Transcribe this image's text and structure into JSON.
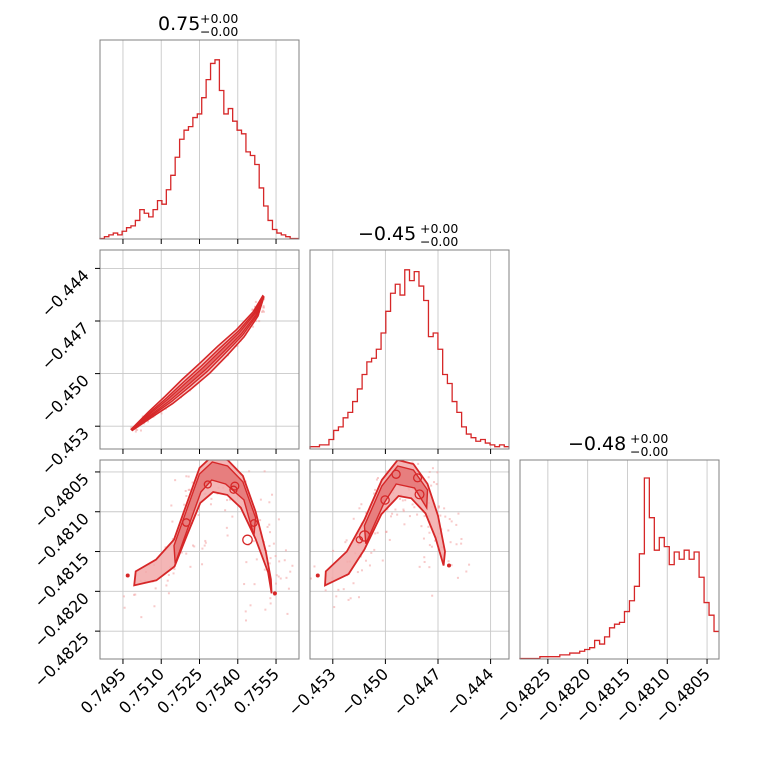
{
  "chart_data": {
    "type": "corner",
    "color": "#d62728",
    "grid": true,
    "parameters": [
      {
        "title_value": "0.75",
        "title_plus": "+0.00",
        "title_minus": "−0.00",
        "range": [
          0.7486,
          0.7564
        ],
        "ticks": [
          0.7495,
          0.751,
          0.7525,
          0.754,
          0.7555
        ],
        "tick_labels": [
          "0.7495",
          "0.7510",
          "0.7525",
          "0.7540",
          "0.7555"
        ],
        "histogram": [
          0.0,
          0.01,
          0.02,
          0.03,
          0.02,
          0.04,
          0.06,
          0.07,
          0.1,
          0.16,
          0.14,
          0.12,
          0.16,
          0.21,
          0.19,
          0.27,
          0.35,
          0.45,
          0.55,
          0.6,
          0.62,
          0.67,
          0.69,
          0.78,
          0.88,
          0.97,
          0.99,
          0.82,
          0.69,
          0.72,
          0.65,
          0.6,
          0.58,
          0.48,
          0.46,
          0.41,
          0.28,
          0.18,
          0.1,
          0.05,
          0.03,
          0.02,
          0.01,
          0.0,
          0.0
        ]
      },
      {
        "title_value": "−0.45",
        "title_plus": "+0.00",
        "title_minus": "−0.00",
        "range": [
          -0.4543,
          -0.44295
        ],
        "ticks": [
          -0.453,
          -0.45,
          -0.447,
          -0.444
        ],
        "tick_labels": [
          "−0.453",
          "−0.450",
          "−0.447",
          "−0.444"
        ],
        "histogram": [
          0.01,
          0.01,
          0.02,
          0.02,
          0.05,
          0.1,
          0.12,
          0.17,
          0.2,
          0.26,
          0.33,
          0.41,
          0.48,
          0.5,
          0.55,
          0.64,
          0.76,
          0.86,
          0.91,
          0.85,
          0.99,
          0.93,
          0.98,
          0.9,
          0.82,
          0.62,
          0.64,
          0.55,
          0.41,
          0.36,
          0.26,
          0.2,
          0.12,
          0.08,
          0.06,
          0.04,
          0.05,
          0.03,
          0.02,
          0.01,
          0.02,
          0.01
        ]
      },
      {
        "title_value": "−0.48",
        "title_plus": "+0.00",
        "title_minus": "−0.00",
        "range": [
          -0.48285,
          -0.48035
        ],
        "ticks": [
          -0.4825,
          -0.482,
          -0.4815,
          -0.481,
          -0.4805
        ],
        "tick_labels": [
          "−0.4825",
          "−0.4820",
          "−0.4815",
          "−0.4810",
          "−0.4805"
        ],
        "histogram": [
          0.0,
          0.0,
          0.0,
          0.0,
          0.01,
          0.01,
          0.01,
          0.01,
          0.02,
          0.02,
          0.03,
          0.03,
          0.04,
          0.05,
          0.06,
          0.1,
          0.08,
          0.12,
          0.17,
          0.19,
          0.2,
          0.26,
          0.32,
          0.4,
          0.58,
          1.0,
          0.78,
          0.6,
          0.67,
          0.62,
          0.52,
          0.59,
          0.55,
          0.6,
          0.55,
          0.59,
          0.45,
          0.31,
          0.24,
          0.15
        ]
      }
    ],
    "pairs": [
      {
        "row": 1,
        "col": 0,
        "relation": "line",
        "contour_points": [
          [
            0.74985,
            -0.4532
          ],
          [
            0.7506,
            -0.4523
          ],
          [
            0.7513,
            -0.4515
          ],
          [
            0.752,
            -0.4506
          ],
          [
            0.7527,
            -0.4497
          ],
          [
            0.7534,
            -0.4487
          ],
          [
            0.7541,
            -0.4477
          ],
          [
            0.7547,
            -0.4466
          ],
          [
            0.755,
            -0.4456
          ]
        ]
      },
      {
        "row": 2,
        "col": 0,
        "relation": "arc",
        "contour_points": [
          [
            0.75,
            -0.48175
          ],
          [
            0.7508,
            -0.4816
          ],
          [
            0.7515,
            -0.48135
          ],
          [
            0.752,
            -0.4809
          ],
          [
            0.7525,
            -0.48045
          ],
          [
            0.753,
            -0.4803
          ],
          [
            0.7536,
            -0.48035
          ],
          [
            0.7542,
            -0.48055
          ],
          [
            0.7547,
            -0.481
          ],
          [
            0.7551,
            -0.4815
          ],
          [
            0.7553,
            -0.48185
          ]
        ]
      },
      {
        "row": 2,
        "col": 1,
        "relation": "arc",
        "contour_points": [
          [
            -0.4534,
            -0.48175
          ],
          [
            -0.4522,
            -0.4815
          ],
          [
            -0.4512,
            -0.4811
          ],
          [
            -0.4502,
            -0.4806
          ],
          [
            -0.4493,
            -0.48035
          ],
          [
            -0.4484,
            -0.4804
          ],
          [
            -0.4476,
            -0.48065
          ],
          [
            -0.447,
            -0.48105
          ],
          [
            -0.4466,
            -0.4815
          ]
        ]
      }
    ]
  }
}
